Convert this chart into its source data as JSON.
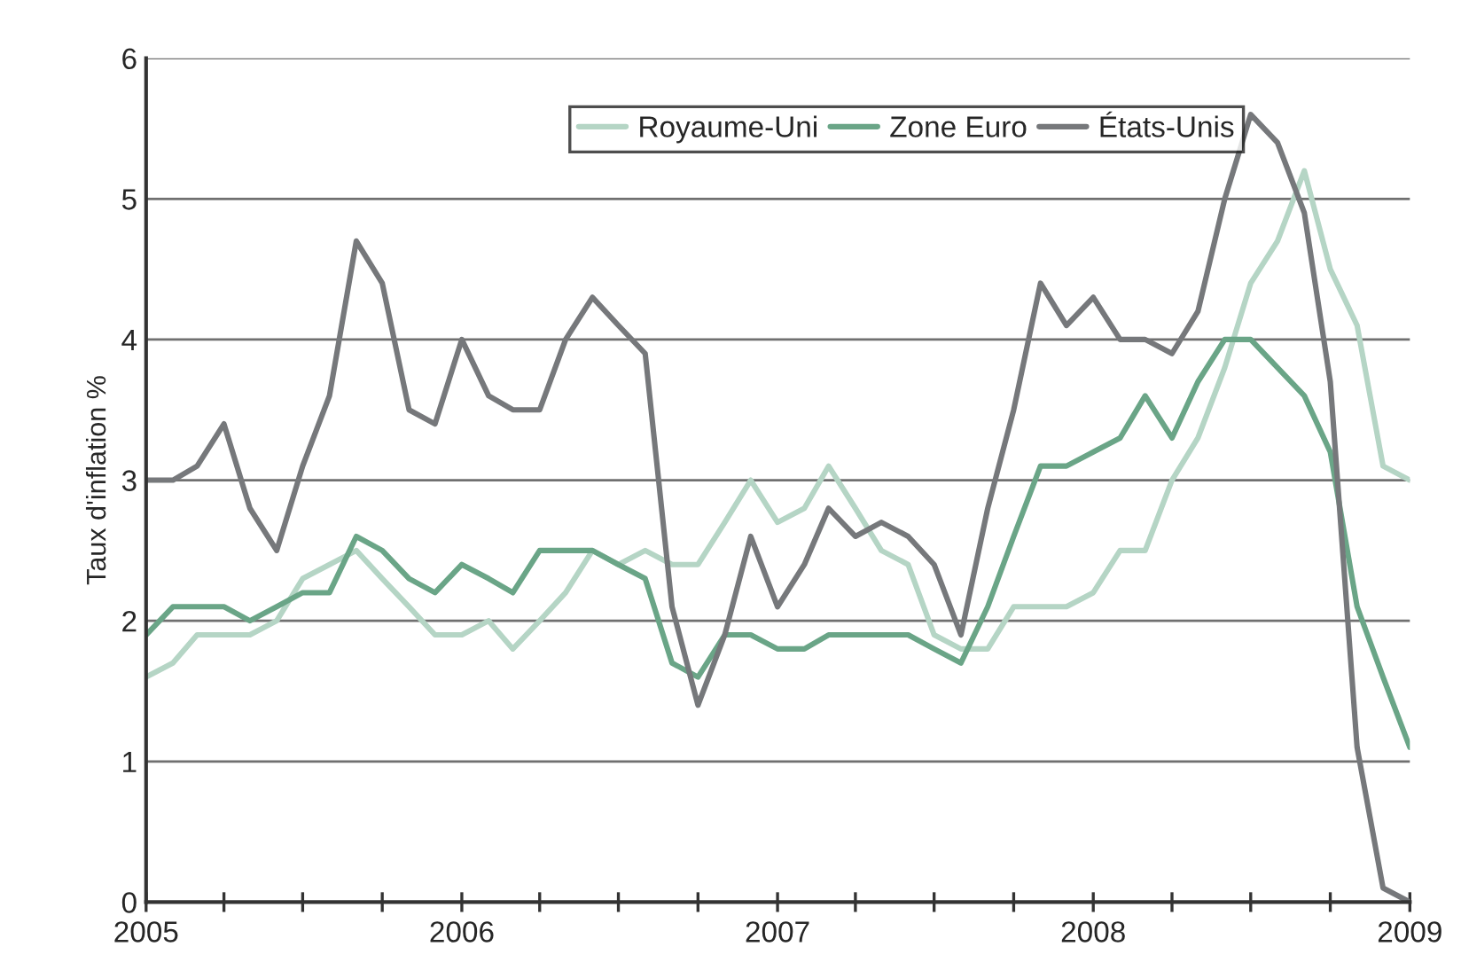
{
  "chart_data": {
    "type": "line",
    "ylabel": "Taux d'inflation %",
    "x": [
      "2005-01",
      "2005-02",
      "2005-03",
      "2005-04",
      "2005-05",
      "2005-06",
      "2005-07",
      "2005-08",
      "2005-09",
      "2005-10",
      "2005-11",
      "2005-12",
      "2006-01",
      "2006-02",
      "2006-03",
      "2006-04",
      "2006-05",
      "2006-06",
      "2006-07",
      "2006-08",
      "2006-09",
      "2006-10",
      "2006-11",
      "2006-12",
      "2007-01",
      "2007-02",
      "2007-03",
      "2007-04",
      "2007-05",
      "2007-06",
      "2007-07",
      "2007-08",
      "2007-09",
      "2007-10",
      "2007-11",
      "2007-12",
      "2008-01",
      "2008-02",
      "2008-03",
      "2008-04",
      "2008-05",
      "2008-06",
      "2008-07",
      "2008-08",
      "2008-09",
      "2008-10",
      "2008-11",
      "2008-12",
      "2009-01"
    ],
    "series": [
      {
        "name": "Royaume-Uni",
        "color": "#b5d5c5",
        "values": [
          1.6,
          1.7,
          1.9,
          1.9,
          1.9,
          2.0,
          2.3,
          2.4,
          2.5,
          2.3,
          2.1,
          1.9,
          1.9,
          2.0,
          1.8,
          2.0,
          2.2,
          2.5,
          2.4,
          2.5,
          2.4,
          2.4,
          2.7,
          3.0,
          2.7,
          2.8,
          3.1,
          2.8,
          2.5,
          2.4,
          1.9,
          1.8,
          1.8,
          2.1,
          2.1,
          2.1,
          2.2,
          2.5,
          2.5,
          3.0,
          3.3,
          3.8,
          4.4,
          4.7,
          5.2,
          4.5,
          4.1,
          3.1,
          3.0
        ]
      },
      {
        "name": "Zone Euro",
        "color": "#6aa587",
        "values": [
          1.9,
          2.1,
          2.1,
          2.1,
          2.0,
          2.1,
          2.2,
          2.2,
          2.6,
          2.5,
          2.3,
          2.2,
          2.4,
          2.3,
          2.2,
          2.5,
          2.5,
          2.5,
          2.4,
          2.3,
          1.7,
          1.6,
          1.9,
          1.9,
          1.8,
          1.8,
          1.9,
          1.9,
          1.9,
          1.9,
          1.8,
          1.7,
          2.1,
          2.6,
          3.1,
          3.1,
          3.2,
          3.3,
          3.6,
          3.3,
          3.7,
          4.0,
          4.0,
          3.8,
          3.6,
          3.2,
          2.1,
          1.6,
          1.1
        ]
      },
      {
        "name": "États-Unis",
        "color": "#76787b",
        "values": [
          3.0,
          3.0,
          3.1,
          3.4,
          2.8,
          2.5,
          3.1,
          3.6,
          4.7,
          4.4,
          3.5,
          3.4,
          4.0,
          3.6,
          3.5,
          3.5,
          4.0,
          4.3,
          4.1,
          3.9,
          2.1,
          1.4,
          1.9,
          2.6,
          2.1,
          2.4,
          2.8,
          2.6,
          2.7,
          2.6,
          2.4,
          1.9,
          2.8,
          3.5,
          4.4,
          4.1,
          4.3,
          4.0,
          4.0,
          3.9,
          4.2,
          5.0,
          5.6,
          5.4,
          4.9,
          3.7,
          1.1,
          0.1,
          0.0
        ]
      }
    ],
    "xlim": [
      "2005-01",
      "2009-01"
    ],
    "xticks": [
      {
        "value": "2005-01",
        "label": "2005"
      },
      {
        "value": "2005-04",
        "label": null
      },
      {
        "value": "2005-07",
        "label": null
      },
      {
        "value": "2005-10",
        "label": null
      },
      {
        "value": "2006-01",
        "label": "2006"
      },
      {
        "value": "2006-04",
        "label": null
      },
      {
        "value": "2006-07",
        "label": null
      },
      {
        "value": "2006-10",
        "label": null
      },
      {
        "value": "2007-01",
        "label": "2007"
      },
      {
        "value": "2007-04",
        "label": null
      },
      {
        "value": "2007-07",
        "label": null
      },
      {
        "value": "2007-10",
        "label": null
      },
      {
        "value": "2008-01",
        "label": "2008"
      },
      {
        "value": "2008-04",
        "label": null
      },
      {
        "value": "2008-07",
        "label": null
      },
      {
        "value": "2008-10",
        "label": null
      },
      {
        "value": "2009-01",
        "label": "2009"
      }
    ],
    "ylim": [
      0,
      6
    ],
    "yticks": [
      0,
      1,
      2,
      3,
      4,
      5,
      6
    ],
    "grid": "y",
    "legend": "top right",
    "line_style": "solid",
    "marker": "none"
  }
}
